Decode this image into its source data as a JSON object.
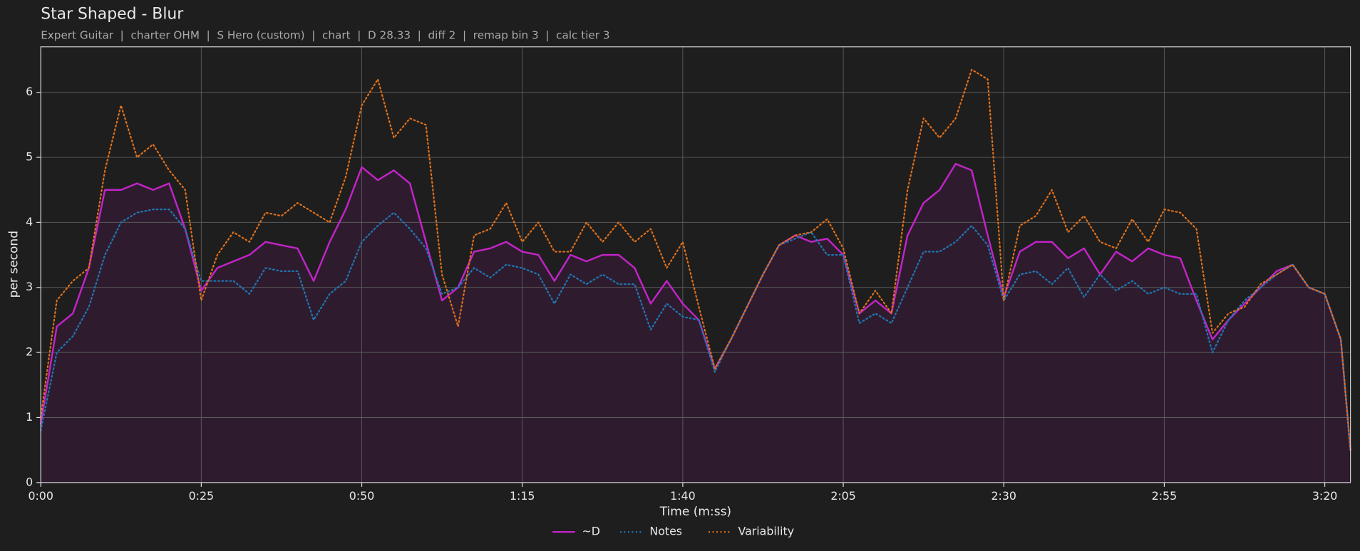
{
  "chart_data": {
    "type": "line",
    "title": "Star Shaped - Blur",
    "subtitle": "Expert Guitar  |  charter OHM  |  S Hero (custom)  |  chart  |  D 28.33  |  diff 2  |  remap bin 3  |  calc tier 3",
    "xlabel": "Time (m:ss)",
    "ylabel": "per second",
    "xlim": [
      0,
      204
    ],
    "ylim": [
      0,
      6.7
    ],
    "xticks": [
      {
        "value": 0,
        "label": "0:00"
      },
      {
        "value": 25,
        "label": "0:25"
      },
      {
        "value": 50,
        "label": "0:50"
      },
      {
        "value": 75,
        "label": "1:15"
      },
      {
        "value": 100,
        "label": "1:40"
      },
      {
        "value": 125,
        "label": "2:05"
      },
      {
        "value": 150,
        "label": "2:30"
      },
      {
        "value": 175,
        "label": "2:55"
      },
      {
        "value": 200,
        "label": "3:20"
      }
    ],
    "yticks": [
      0,
      1,
      2,
      3,
      4,
      5,
      6
    ],
    "grid": true,
    "legend": "bottom",
    "x": [
      0,
      2.5,
      5,
      7.5,
      10,
      12.5,
      15,
      17.5,
      20,
      22.5,
      25,
      27.5,
      30,
      32.5,
      35,
      37.5,
      40,
      42.5,
      45,
      47.5,
      50,
      52.5,
      55,
      57.5,
      60,
      62.5,
      65,
      67.5,
      70,
      72.5,
      75,
      77.5,
      80,
      82.5,
      85,
      87.5,
      90,
      92.5,
      95,
      97.5,
      100,
      102.5,
      105,
      107.5,
      110,
      112.5,
      115,
      117.5,
      120,
      122.5,
      125,
      127.5,
      130,
      132.5,
      135,
      137.5,
      140,
      142.5,
      145,
      147.5,
      150,
      152.5,
      155,
      157.5,
      160,
      162.5,
      165,
      167.5,
      170,
      172.5,
      175,
      177.5,
      180,
      182.5,
      185,
      187.5,
      190,
      192.5,
      195,
      197.5,
      200,
      202.5,
      204
    ],
    "series": [
      {
        "name": "~D",
        "color": "#c224c8",
        "line_style": "solid",
        "fill": "#2e1c2e",
        "values": [
          0.9,
          2.4,
          2.6,
          3.3,
          4.5,
          4.5,
          4.6,
          4.5,
          4.6,
          3.9,
          2.95,
          3.3,
          3.4,
          3.5,
          3.7,
          3.65,
          3.6,
          3.1,
          3.7,
          4.2,
          4.85,
          4.65,
          4.8,
          4.6,
          3.7,
          2.8,
          3.0,
          3.55,
          3.6,
          3.7,
          3.55,
          3.5,
          3.1,
          3.5,
          3.4,
          3.5,
          3.5,
          3.3,
          2.75,
          3.1,
          2.75,
          2.5,
          1.75,
          2.2,
          2.7,
          3.2,
          3.65,
          3.8,
          3.7,
          3.75,
          3.5,
          2.6,
          2.8,
          2.6,
          3.8,
          4.3,
          4.5,
          4.9,
          4.8,
          3.8,
          2.85,
          3.55,
          3.7,
          3.7,
          3.45,
          3.6,
          3.2,
          3.55,
          3.4,
          3.6,
          3.5,
          3.45,
          2.8,
          2.2,
          2.5,
          2.75,
          3.0,
          3.25,
          3.35,
          3.0,
          2.9,
          2.2,
          0.5
        ]
      },
      {
        "name": "Notes",
        "color": "#1f77b4",
        "line_style": "dotted",
        "values": [
          0.8,
          2.0,
          2.25,
          2.7,
          3.5,
          4.0,
          4.15,
          4.2,
          4.2,
          3.9,
          3.1,
          3.1,
          3.1,
          2.9,
          3.3,
          3.25,
          3.25,
          2.5,
          2.9,
          3.1,
          3.7,
          3.95,
          4.15,
          3.9,
          3.6,
          2.9,
          3.0,
          3.3,
          3.15,
          3.35,
          3.3,
          3.2,
          2.75,
          3.2,
          3.05,
          3.2,
          3.05,
          3.05,
          2.35,
          2.75,
          2.55,
          2.5,
          1.7,
          2.2,
          2.7,
          3.2,
          3.65,
          3.75,
          3.85,
          3.5,
          3.5,
          2.45,
          2.6,
          2.45,
          3.0,
          3.55,
          3.55,
          3.7,
          3.95,
          3.65,
          2.8,
          3.2,
          3.25,
          3.05,
          3.3,
          2.85,
          3.2,
          2.95,
          3.1,
          2.9,
          3.0,
          2.9,
          2.9,
          2.0,
          2.5,
          2.8,
          3.0,
          3.2,
          3.35,
          3.0,
          2.9,
          2.2,
          0.5
        ]
      },
      {
        "name": "Variability",
        "color": "#e0701a",
        "line_style": "dotted",
        "values": [
          1.0,
          2.8,
          3.1,
          3.3,
          4.8,
          5.8,
          5.0,
          5.2,
          4.8,
          4.5,
          2.8,
          3.5,
          3.85,
          3.7,
          4.15,
          4.1,
          4.3,
          4.15,
          4.0,
          4.7,
          5.8,
          6.2,
          5.3,
          5.6,
          5.5,
          3.2,
          2.4,
          3.8,
          3.9,
          4.3,
          3.7,
          4.0,
          3.55,
          3.55,
          4.0,
          3.7,
          4.0,
          3.7,
          3.9,
          3.3,
          3.7,
          2.7,
          1.75,
          2.2,
          2.7,
          3.2,
          3.65,
          3.8,
          3.85,
          4.05,
          3.6,
          2.6,
          2.95,
          2.6,
          4.5,
          5.6,
          5.3,
          5.6,
          6.35,
          6.2,
          2.8,
          3.95,
          4.1,
          4.5,
          3.85,
          4.1,
          3.7,
          3.6,
          4.05,
          3.7,
          4.2,
          4.15,
          3.9,
          2.3,
          2.6,
          2.7,
          3.05,
          3.2,
          3.35,
          3.0,
          2.9,
          2.2,
          0.5
        ]
      }
    ]
  }
}
